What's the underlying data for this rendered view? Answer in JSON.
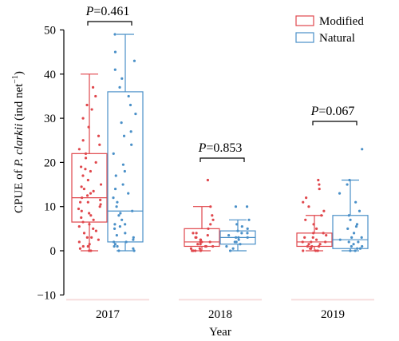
{
  "chart_data": {
    "type": "boxplot",
    "xlabel": "Year",
    "ylabel": "CPUE of P. clarkii (ind net⁻¹)",
    "ylabel_parts": {
      "prefix": "CPUE of ",
      "species": "P. clarkii",
      "unit_open": " (ind net",
      "unit_sup": "−1",
      "unit_close": ")"
    },
    "ylim": [
      -10,
      50
    ],
    "yticks": [
      -10,
      0,
      10,
      20,
      30,
      40,
      50
    ],
    "ytick_labels": [
      "−10",
      "0",
      "10",
      "20",
      "30",
      "40",
      "50"
    ],
    "categories": [
      "2017",
      "2018",
      "2019"
    ],
    "grid": false,
    "legend_position": "top-right",
    "legend": [
      {
        "label": "Modified",
        "color": "#e0474c"
      },
      {
        "label": "Natural",
        "color": "#4a90c8"
      }
    ],
    "series": [
      {
        "name": "Modified",
        "color": "#e0474c",
        "boxes": [
          {
            "category": "2017",
            "whisker_low": 0,
            "q1": 6.5,
            "median": 12,
            "q3": 22,
            "whisker_high": 40,
            "points": [
              0,
              0,
              0.5,
              1,
              1,
              1.5,
              2,
              2.5,
              3,
              3,
              4,
              4.5,
              5,
              5.5,
              6,
              6.5,
              7,
              7.5,
              8,
              8.5,
              9,
              9.5,
              10,
              10.5,
              11,
              11,
              11.5,
              12,
              12.5,
              13,
              13.5,
              14,
              14.5,
              15,
              16,
              17,
              18,
              18.5,
              19,
              20,
              21,
              22,
              23,
              24,
              25,
              26,
              28,
              30,
              32,
              33,
              35,
              37
            ]
          },
          {
            "category": "2018",
            "whisker_low": 0,
            "q1": 1,
            "median": 2,
            "q3": 5,
            "whisker_high": 10,
            "points": [
              0,
              0,
              0,
              0,
              0.5,
              0.5,
              1,
              1,
              1,
              1.5,
              1.5,
              2,
              2,
              2,
              2.5,
              2.5,
              3,
              3,
              3.5,
              4,
              4,
              5,
              6,
              7,
              8,
              10,
              16
            ]
          },
          {
            "category": "2019",
            "whisker_low": 0,
            "q1": 1,
            "median": 2,
            "q3": 4,
            "whisker_high": 8,
            "points": [
              0,
              0,
              0,
              0.5,
              0.5,
              1,
              1,
              1,
              1.5,
              1.5,
              2,
              2,
              2,
              2.5,
              3,
              3,
              3.5,
              4,
              4,
              5,
              6,
              7,
              8,
              9,
              10,
              11,
              12,
              14,
              15,
              16
            ]
          }
        ]
      },
      {
        "name": "Natural",
        "color": "#4a90c8",
        "boxes": [
          {
            "category": "2017",
            "whisker_low": 0,
            "q1": 2,
            "median": 9,
            "q3": 36,
            "whisker_high": 49,
            "points": [
              0,
              0,
              0.5,
              1,
              1,
              1.5,
              2,
              2,
              2.5,
              3,
              3.5,
              4,
              5,
              5.5,
              6,
              6,
              7,
              8,
              8.5,
              9,
              10,
              11,
              12,
              13,
              14,
              15,
              17,
              18,
              19.5,
              22,
              24,
              26,
              27,
              29,
              31,
              33,
              35,
              37,
              39,
              41,
              43,
              45,
              49
            ]
          },
          {
            "category": "2018",
            "whisker_low": 0,
            "q1": 1.5,
            "median": 3,
            "q3": 4.5,
            "whisker_high": 7,
            "points": [
              0,
              0.5,
              1,
              1.5,
              2,
              2,
              2.5,
              3,
              3,
              3,
              3.5,
              4,
              4,
              4.5,
              5,
              5.5,
              6,
              7,
              10,
              10
            ]
          },
          {
            "category": "2019",
            "whisker_low": 0,
            "q1": 0.5,
            "median": 2.5,
            "q3": 8,
            "whisker_high": 16,
            "points": [
              0,
              0,
              0.5,
              0.5,
              1,
              1,
              1.5,
              2,
              2,
              2.5,
              3,
              3,
              4,
              5,
              5.5,
              6,
              7,
              8,
              9,
              11,
              13,
              15,
              16,
              23
            ]
          }
        ]
      }
    ],
    "annotations": [
      {
        "category": "2017",
        "italic": "P",
        "text": "=0.461"
      },
      {
        "category": "2018",
        "italic": "P",
        "text": "=0.853"
      },
      {
        "category": "2019",
        "italic": "P",
        "text": "=0.067"
      }
    ]
  }
}
